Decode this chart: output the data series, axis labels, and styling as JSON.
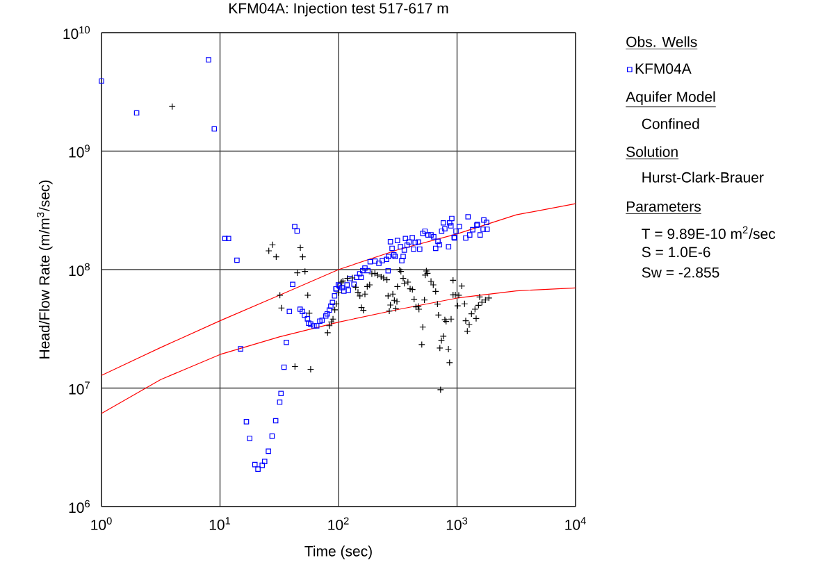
{
  "chart_data": {
    "type": "scatter",
    "title": "KFM04A: Injection test 517-617 m",
    "xlabel": "Time (sec)",
    "ylabel": "Head/Flow Rate (m/m$^{3}$/sec)",
    "log": "xy",
    "grid": true,
    "legend": "right",
    "legend_title": "Obs. Wells",
    "xlim": [
      1,
      10000
    ],
    "ylim": [
      1000000,
      10000000000
    ],
    "xticks": [
      {
        "value": 1,
        "label": "10$^{0}$"
      },
      {
        "value": 10,
        "label": "10$^{1}$"
      },
      {
        "value": 100,
        "label": "10$^{2}$"
      },
      {
        "value": 1000,
        "label": "10$^{3}$"
      },
      {
        "value": 10000,
        "label": "10$^{4}$"
      }
    ],
    "yticks": [
      {
        "value": 1000000,
        "label": "10$^{6}$"
      },
      {
        "value": 10000000,
        "label": "10$^{7}$"
      },
      {
        "value": 100000000,
        "label": "10$^{8}$"
      },
      {
        "value": 1000000000,
        "label": "10$^{9}$"
      },
      {
        "value": 10000000000,
        "label": "10$^{10}$"
      }
    ],
    "annotations": [
      "Aquifer Model",
      "Confined",
      "Solution",
      "Hurst-Clark-Brauer",
      "Parameters",
      "T = 9.89E-10 m$^{2}$/sec",
      "S = 1.0E-6",
      "Sw = -2.855"
    ],
    "series": [
      {
        "name": "KFM04A",
        "marker": "square",
        "color": "#0000ff",
        "x": [
          1.0,
          1.98,
          8.0,
          8.95,
          11.0,
          11.8,
          13.9,
          14.9,
          16.7,
          17.8,
          19.7,
          20.9,
          22.7,
          23.8,
          25.6,
          27.5,
          29.5,
          31.9,
          32.7,
          34.7,
          36.3,
          38.5,
          41.0,
          42.7,
          44.7,
          47.4,
          49.5,
          51.6,
          54.7,
          56.0,
          58.2,
          62.1,
          65.5,
          69.5,
          72.6,
          78.1,
          80.2,
          83.6,
          86.1,
          88.9,
          92.6,
          95.7,
          99.6,
          102,
          95.1,
          107,
          111,
          121,
          118,
          125,
          135,
          142,
          155,
          151,
          160,
          167,
          177,
          185,
          203,
          219,
          234,
          254,
          262,
          264,
          293,
          300,
          283,
          274,
          314,
          333,
          342,
          351,
          359,
          379,
          367,
          393,
          419,
          430,
          443,
          484,
          471,
          514,
          536,
          569,
          603,
          636,
          660,
          690,
          711,
          741,
          766,
          789,
          848,
          865,
          888,
          903,
          953,
          980,
          1045,
          1184,
          1238,
          1279,
          1355,
          1469,
          1566,
          1682,
          1775,
          1791,
          1660,
          1483,
          945
        ],
        "values": [
          3900000000.0,
          2100000000.0,
          5900000000.0,
          1540000000.0,
          183000000.0,
          183000000.0,
          120000000.0,
          21400000.0,
          5200000.0,
          3760000.0,
          2260000.0,
          2070000.0,
          2230000.0,
          2400000.0,
          2930000.0,
          3930000.0,
          5300000.0,
          7600000.0,
          9000000.0,
          15000000.0,
          24300000.0,
          44300000.0,
          75000000.0,
          231000000.0,
          212000000.0,
          46300000.0,
          44300000.0,
          41200000.0,
          38400000.0,
          35300000.0,
          34700000.0,
          33500000.0,
          33500000.0,
          36700000.0,
          37300000.0,
          40600000.0,
          42300000.0,
          45500000.0,
          49100000.0,
          52800000.0,
          60000000.0,
          68800000.0,
          74300000.0,
          72600000.0,
          68800000.0,
          70400000.0,
          65800000.0,
          67000000.0,
          74300000.0,
          84000000.0,
          75300000.0,
          85900000.0,
          85900000.0,
          92200000.0,
          98000000.0,
          103000000.0,
          98000000.0,
          116500000.0,
          118000000.0,
          113000000.0,
          119000000.0,
          122000000.0,
          97700000.0,
          129000000.0,
          133000000.0,
          129000000.0,
          151000000.0,
          172000000.0,
          176000000.0,
          156000000.0,
          119000000.0,
          129000000.0,
          146000000.0,
          161000000.0,
          183000000.0,
          171000000.0,
          186000000.0,
          149000000.0,
          169000000.0,
          149000000.0,
          171000000.0,
          202000000.0,
          211000000.0,
          196000000.0,
          196000000.0,
          189000000.0,
          151000000.0,
          173000000.0,
          162000000.0,
          211000000.0,
          248000000.0,
          221000000.0,
          156000000.0,
          248000000.0,
          234000000.0,
          270000000.0,
          185000000.0,
          211000000.0,
          231000000.0,
          185000000.0,
          279000000.0,
          196000000.0,
          217000000.0,
          237000000.0,
          196000000.0,
          262000000.0,
          250000000.0,
          219000000.0,
          219000000.0,
          240000000.0,
          187000000.0
        ]
      },
      {
        "marker": "cross",
        "color": "#000000",
        "x": [
          3.95,
          27.7,
          25.8,
          29.8,
          47.6,
          49.8,
          44.9,
          52.1,
          32,
          55,
          33,
          56.7,
          42.9,
          58.2,
          80.9,
          83.6,
          87,
          89.8,
          93,
          95.7,
          100,
          105.6,
          108.9,
          119,
          130.5,
          139.6,
          145.9,
          151.4,
          156.2,
          162,
          167,
          174.7,
          183,
          191,
          202.6,
          214,
          229,
          240,
          256,
          262,
          274,
          268,
          287,
          296,
          304,
          311,
          314,
          328,
          336,
          351,
          359,
          385,
          402,
          420,
          434,
          450,
          471,
          477,
          504,
          514,
          531,
          539,
          563,
          551,
          603,
          630,
          660,
          684,
          697,
          716,
          738,
          766,
          789,
          808,
          845,
          865,
          891,
          925,
          925,
          967,
          1011,
          1034,
          1096,
          726,
          1157,
          1184,
          1221,
          1266,
          1324,
          1417,
          1449,
          1516,
          1551,
          1622,
          1735,
          1857
        ],
        "values": [
          2380000000.0,
          162000000.0,
          144000000.0,
          128000000.0,
          153000000.0,
          128000000.0,
          94000000.0,
          96400000.0,
          60700000.0,
          60700000.0,
          47400000.0,
          42900000.0,
          15200000.0,
          14400000.0,
          29300000.0,
          33600000.0,
          36200000.0,
          38200000.0,
          45700000.0,
          51400000.0,
          63800000.0,
          78400000.0,
          80200000.0,
          84300000.0,
          85000000.0,
          71000000.0,
          64300000.0,
          59900000.0,
          47800000.0,
          45300000.0,
          62100000.0,
          72000000.0,
          74300000.0,
          92200000.0,
          93100000.0,
          89800000.0,
          87000000.0,
          85000000.0,
          82000000.0,
          60000000.0,
          50200000.0,
          44700000.0,
          62100000.0,
          55000000.0,
          46800000.0,
          53700000.0,
          72000000.0,
          99600000.0,
          96400000.0,
          84300000.0,
          76600000.0,
          78400000.0,
          68800000.0,
          67900000.0,
          56200000.0,
          48400000.0,
          48900000.0,
          46300000.0,
          23300000.0,
          32700000.0,
          55400000.0,
          89800000.0,
          93100000.0,
          97300000.0,
          79500000.0,
          74300000.0,
          65500000.0,
          51100000.0,
          41400000.0,
          21800000.0,
          25200000.0,
          27400000.0,
          37800000.0,
          36500000.0,
          21300000.0,
          16400000.0,
          38200000.0,
          81300000.0,
          61200000.0,
          61200000.0,
          49500000.0,
          60700000.0,
          72600000.0,
          9670000.0,
          51400000.0,
          37000000.0,
          30200000.0,
          34300000.0,
          42300000.0,
          46300000.0,
          38700000.0,
          50000000.0,
          58800000.0,
          53000000.0,
          55400000.0,
          57500000.0
        ]
      },
      {
        "type": "line",
        "marker": "none",
        "color": "#ff0000",
        "x": [
          1,
          3.16,
          10,
          31.6,
          100,
          316,
          1000,
          3162,
          10000
        ],
        "values": [
          12800000.0,
          22000000.0,
          37000000.0,
          60700000.0,
          100000000.0,
          147000000.0,
          200000000.0,
          290000000.0,
          360000000.0
        ]
      },
      {
        "type": "line",
        "marker": "none",
        "color": "#ff0000",
        "x": [
          1,
          3.16,
          10,
          31.6,
          100,
          316,
          1000,
          3162,
          10000
        ],
        "values": [
          6100000.0,
          11800000.0,
          19200000.0,
          27000000.0,
          36000000.0,
          46000000.0,
          57500000.0,
          66200000.0,
          70000000.0
        ]
      }
    ]
  }
}
